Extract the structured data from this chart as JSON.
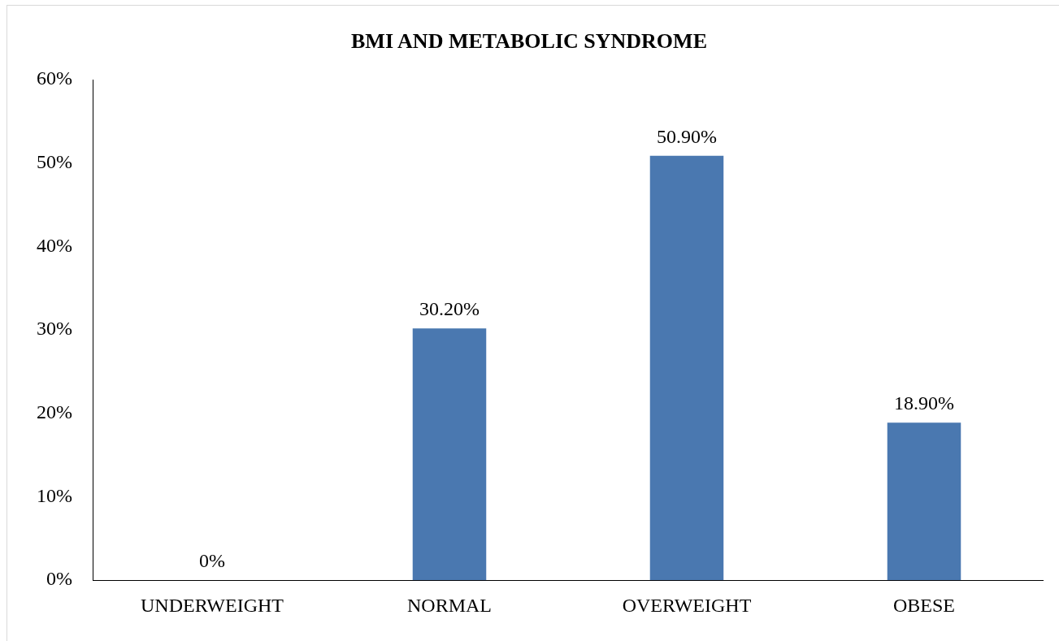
{
  "chart_data": {
    "type": "bar",
    "title": "BMI AND METABOLIC SYNDROME",
    "categories": [
      "UNDERWEIGHT",
      "NORMAL",
      "OVERWEIGHT",
      "OBESE"
    ],
    "values": [
      0,
      30.2,
      50.9,
      18.9
    ],
    "color": "#4a78b0",
    "value_labels": [
      "0%",
      "30.20%",
      "50.90%",
      "18.90%"
    ],
    "ylim": [
      0,
      60
    ],
    "yticks": [
      {
        "value": 0,
        "label": "0%"
      },
      {
        "value": 10,
        "label": "10%"
      },
      {
        "value": 20,
        "label": "20%"
      },
      {
        "value": 30,
        "label": "30%"
      },
      {
        "value": 40,
        "label": "40%"
      },
      {
        "value": 50,
        "label": "50%"
      },
      {
        "value": 60,
        "label": "60%"
      }
    ],
    "grid": false,
    "legend": false
  }
}
